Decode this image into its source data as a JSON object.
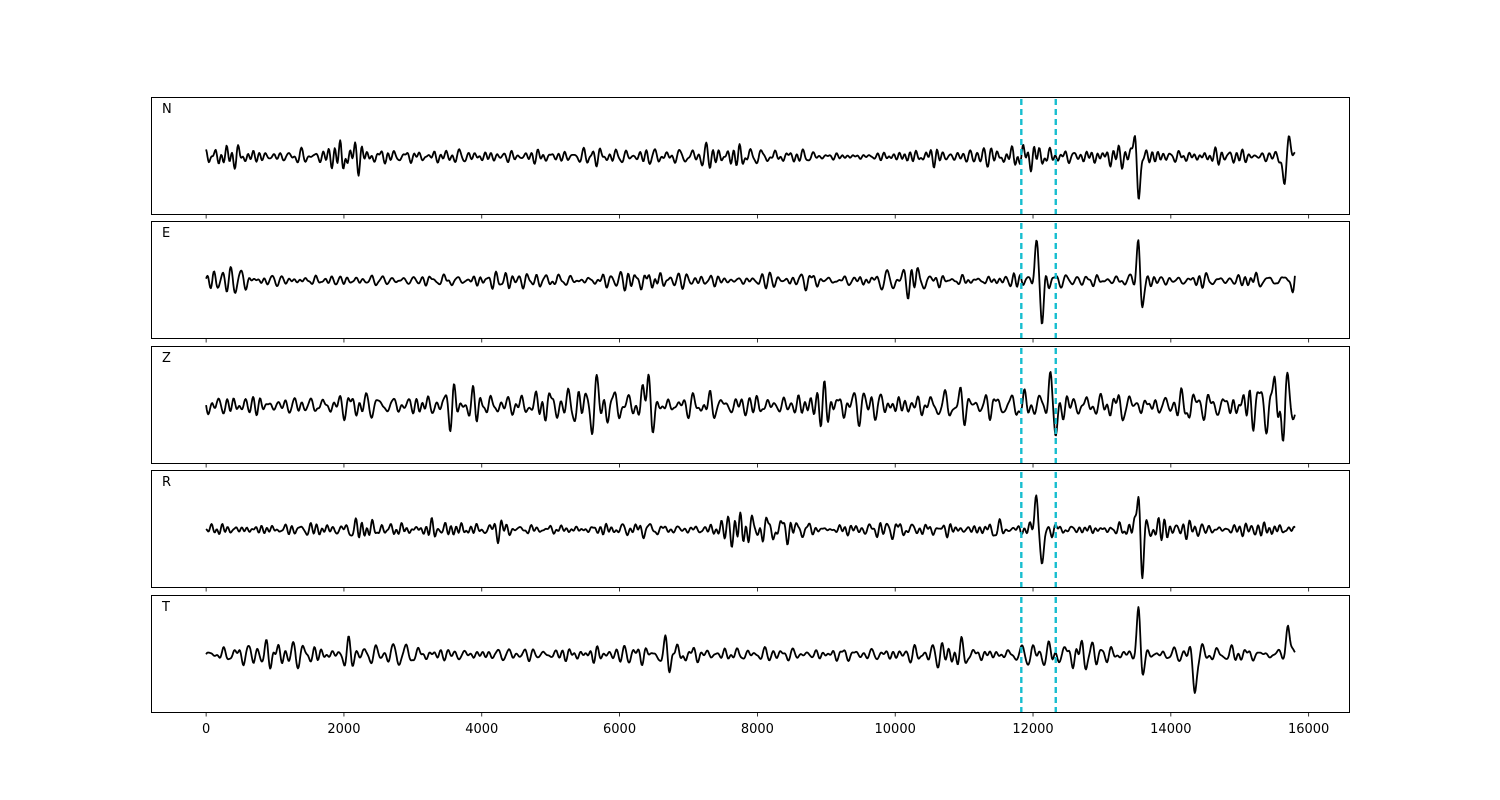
{
  "chart_data": {
    "type": "line",
    "x_range": [
      0,
      15800
    ],
    "xlim": [
      -800,
      16600
    ],
    "x_ticks": [
      0,
      2000,
      4000,
      6000,
      8000,
      10000,
      12000,
      14000,
      16000
    ],
    "x_tick_labels": [
      "0",
      "2000",
      "4000",
      "6000",
      "8000",
      "10000",
      "12000",
      "14000",
      "16000"
    ],
    "grid": false,
    "line_color": "#000000",
    "marker_color": "#17becf",
    "markers_x": [
      11830,
      12330
    ],
    "panels": [
      {
        "label": "N",
        "seed": 11,
        "base_amp": 0.3,
        "noise_scale": 0.38,
        "burst_times": [
          2000,
          5600,
          6450,
          10550,
          11500
        ],
        "events": [
          {
            "t": 13530,
            "amp": -0.88
          },
          {
            "t": 13480,
            "amp": 0.55
          },
          {
            "t": 15650,
            "amp": -0.6
          },
          {
            "t": 15720,
            "amp": 0.45
          }
        ]
      },
      {
        "label": "E",
        "seed": 23,
        "base_amp": 0.28,
        "noise_scale": 0.38,
        "burst_times": [
          3250,
          3500,
          10300,
          11700,
          15200
        ],
        "events": [
          {
            "t": 12050,
            "amp": 0.75
          },
          {
            "t": 12130,
            "amp": -0.75
          },
          {
            "t": 13530,
            "amp": 0.85
          },
          {
            "t": 13580,
            "amp": -0.65
          }
        ]
      },
      {
        "label": "Z",
        "seed": 37,
        "base_amp": 0.55,
        "noise_scale": 0.38,
        "burst_times": [
          6400,
          5700,
          8850,
          13350,
          14300,
          15550
        ],
        "events": [
          {
            "t": 6420,
            "amp": 0.85
          },
          {
            "t": 6480,
            "amp": -0.6
          },
          {
            "t": 12250,
            "amp": 0.6
          },
          {
            "t": 12330,
            "amp": -0.65
          }
        ]
      },
      {
        "label": "R",
        "seed": 49,
        "base_amp": 0.27,
        "noise_scale": 0.38,
        "burst_times": [
          3300,
          7600,
          11450,
          15200
        ],
        "events": [
          {
            "t": 12050,
            "amp": 0.7
          },
          {
            "t": 12130,
            "amp": -0.78
          },
          {
            "t": 13530,
            "amp": 0.85
          },
          {
            "t": 13580,
            "amp": -0.9
          }
        ]
      },
      {
        "label": "T",
        "seed": 61,
        "base_amp": 0.3,
        "noise_scale": 0.38,
        "burst_times": [
          2000,
          3650,
          5600,
          10900,
          14350
        ],
        "events": [
          {
            "t": 13530,
            "amp": 0.92
          },
          {
            "t": 13580,
            "amp": -0.4
          },
          {
            "t": 14350,
            "amp": -0.65
          },
          {
            "t": 15700,
            "amp": 0.6
          }
        ]
      }
    ]
  }
}
